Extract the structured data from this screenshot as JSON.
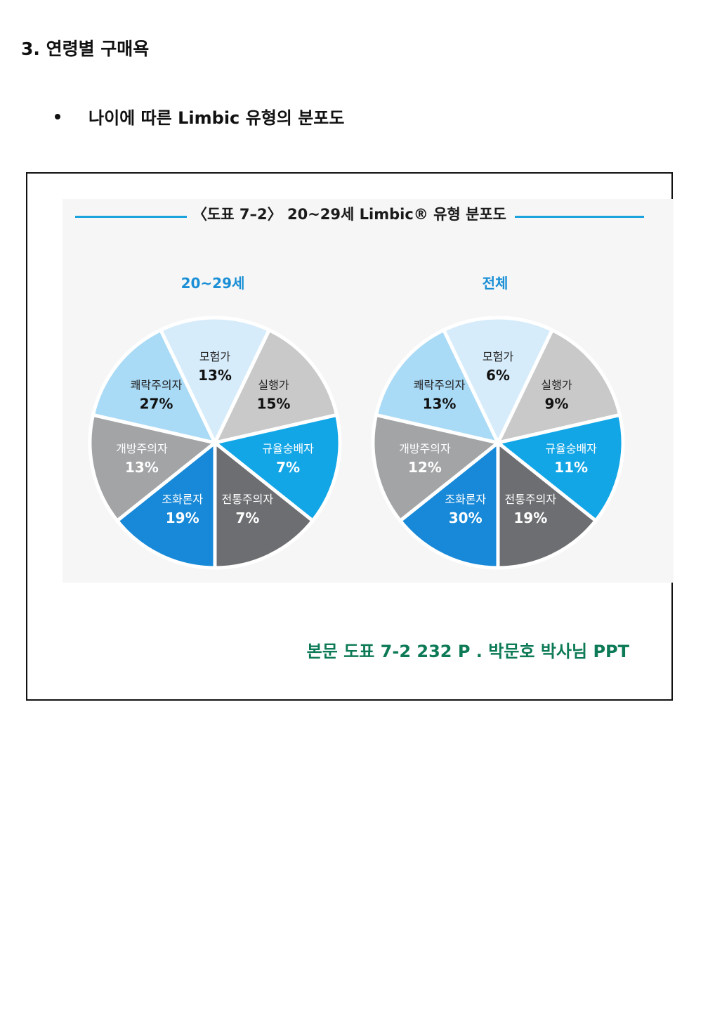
{
  "heading": "3. 연령별  구매욕",
  "bullet": "나이에 따른 Limbic 유형의 분포도",
  "figure_title": "〈도표 7–2〉 20~29세 Limbic® 유형 분포도",
  "credit": "본문 도표 7-2  232 P  . 박문호 박사님 PPT",
  "colors": {
    "accent_line": "#1aa3dd",
    "title_blue": "#1a8fd6",
    "credit_green": "#0d7a57"
  },
  "chart_data": [
    {
      "type": "pie",
      "title": "20~29세",
      "categories": [
        "모험가",
        "실행가",
        "규율숭배자",
        "전통주의자",
        "조화론자",
        "개방주의자",
        "쾌락주의자"
      ],
      "values": [
        13,
        15,
        7,
        7,
        19,
        13,
        27
      ],
      "labels": [
        "13%",
        "15%",
        "7%",
        "7%",
        "19%",
        "13%",
        "27%"
      ],
      "colors": [
        "#d7ecfa",
        "#c9c9c9",
        "#12a6e6",
        "#6d6e71",
        "#1889d8",
        "#a3a4a6",
        "#a9daf6"
      ]
    },
    {
      "type": "pie",
      "title": "전체",
      "categories": [
        "모험가",
        "실행가",
        "규율숭배자",
        "전통주의자",
        "조화론자",
        "개방주의자",
        "쾌락주의자"
      ],
      "values": [
        6,
        9,
        11,
        19,
        30,
        12,
        13
      ],
      "labels": [
        "6%",
        "9%",
        "11%",
        "19%",
        "30%",
        "12%",
        "13%"
      ],
      "colors": [
        "#d7ecfa",
        "#c9c9c9",
        "#12a6e6",
        "#6d6e71",
        "#1889d8",
        "#a3a4a6",
        "#a9daf6"
      ]
    }
  ]
}
